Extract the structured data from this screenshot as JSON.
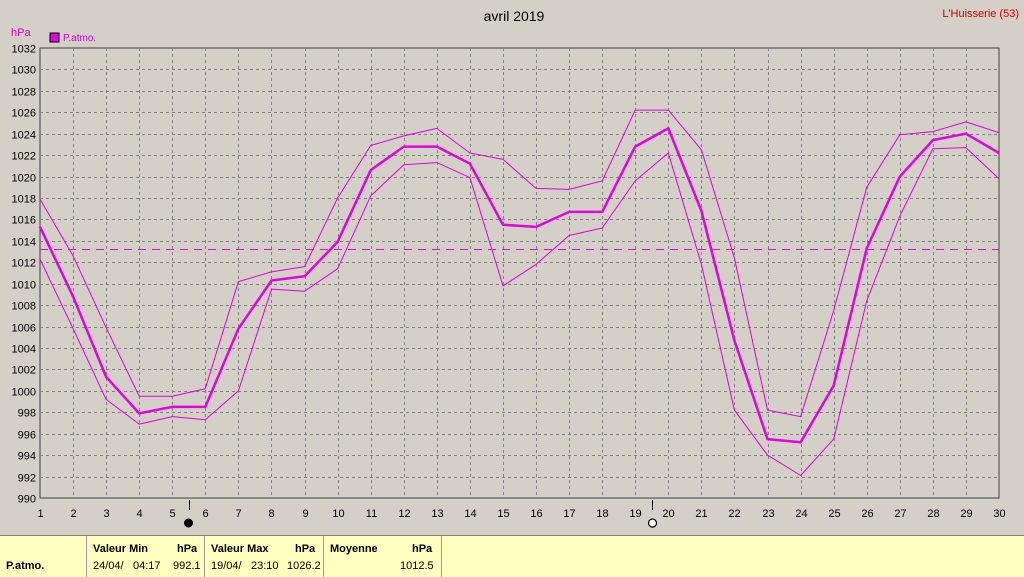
{
  "title": "avril 2019",
  "station": "L'Huisserie (53)",
  "colors": {
    "series": "#e000e0",
    "grid": "#808080",
    "bg": "#d4d0c8",
    "footer_bg": "#ffffc0",
    "station": "#cc0000"
  },
  "chart_data": {
    "type": "line",
    "ylabel": "hPa",
    "ylim": [
      990,
      1032
    ],
    "y_ticks": [
      990,
      992,
      994,
      996,
      998,
      1000,
      1002,
      1004,
      1006,
      1008,
      1010,
      1012,
      1014,
      1016,
      1018,
      1020,
      1022,
      1024,
      1026,
      1028,
      1030,
      1032
    ],
    "xlim": [
      1,
      30
    ],
    "x_ticks": [
      1,
      2,
      3,
      4,
      5,
      6,
      7,
      8,
      9,
      10,
      11,
      12,
      13,
      14,
      15,
      16,
      17,
      18,
      19,
      20,
      21,
      22,
      23,
      24,
      25,
      26,
      27,
      28,
      29,
      30
    ],
    "grid": true,
    "legend": {
      "position": "top-left",
      "label": "P.atmo."
    },
    "mean_line": 1013.2,
    "moon_phases": [
      {
        "phase": "new-moon",
        "x": 5.5
      },
      {
        "phase": "full-moon",
        "x": 19.5
      }
    ],
    "series": [
      {
        "name": "P.atmo.",
        "role": "mean",
        "x": [
          1,
          2,
          3,
          4,
          5,
          6,
          7,
          8,
          9,
          10,
          11,
          12,
          13,
          14,
          15,
          16,
          17,
          18,
          19,
          20,
          21,
          22,
          23,
          24,
          25,
          26,
          27,
          28,
          29,
          30
        ],
        "values": [
          1015.3,
          1008.8,
          1001.3,
          997.9,
          998.5,
          998.5,
          1005.8,
          1010.3,
          1010.7,
          1013.9,
          1020.6,
          1022.8,
          1022.8,
          1021.2,
          1015.5,
          1015.3,
          1016.7,
          1016.7,
          1022.8,
          1024.5,
          1016.8,
          1004.7,
          995.5,
          995.2,
          1000.5,
          1013.3,
          1020.0,
          1023.4,
          1024.0,
          1022.2
        ]
      },
      {
        "name": "",
        "role": "max",
        "x": [
          1,
          2,
          3,
          4,
          5,
          6,
          7,
          8,
          9,
          10,
          11,
          12,
          13,
          14,
          15,
          16,
          17,
          18,
          19,
          20,
          21,
          22,
          23,
          24,
          25,
          26,
          27,
          28,
          29,
          30
        ],
        "values": [
          1017.9,
          1012.6,
          1005.9,
          999.5,
          999.5,
          1000.2,
          1010.2,
          1011.1,
          1011.6,
          1018.0,
          1022.9,
          1023.8,
          1024.5,
          1022.2,
          1021.6,
          1018.9,
          1018.8,
          1019.6,
          1026.2,
          1026.2,
          1022.5,
          1012.4,
          998.2,
          997.6,
          1007.5,
          1019.0,
          1023.9,
          1024.2,
          1025.1,
          1024.1
        ]
      },
      {
        "name": "",
        "role": "min",
        "x": [
          1,
          2,
          3,
          4,
          5,
          6,
          7,
          8,
          9,
          10,
          11,
          12,
          13,
          14,
          15,
          16,
          17,
          18,
          19,
          20,
          21,
          22,
          23,
          24,
          25,
          26,
          27,
          28,
          29,
          30
        ],
        "values": [
          1012.3,
          1005.8,
          999.2,
          996.9,
          997.6,
          997.3,
          1000.0,
          1009.5,
          1009.3,
          1011.4,
          1018.2,
          1021.1,
          1021.3,
          1019.9,
          1009.8,
          1011.8,
          1014.5,
          1015.2,
          1019.6,
          1022.2,
          1011.8,
          998.2,
          994.0,
          992.1,
          995.5,
          1008.4,
          1016.3,
          1022.6,
          1022.7,
          1019.8
        ]
      }
    ]
  },
  "footer": {
    "label": "P.atmo.",
    "min": {
      "header": "Valeur Min",
      "unit": "hPa",
      "date": "24/04/",
      "time": "04:17",
      "value": "992.1"
    },
    "max": {
      "header": "Valeur Max",
      "unit": "hPa",
      "date": "19/04/",
      "time": "23:10",
      "value": "1026.2"
    },
    "mean": {
      "header": "Moyenne",
      "unit": "hPa",
      "value": "1012.5"
    }
  }
}
